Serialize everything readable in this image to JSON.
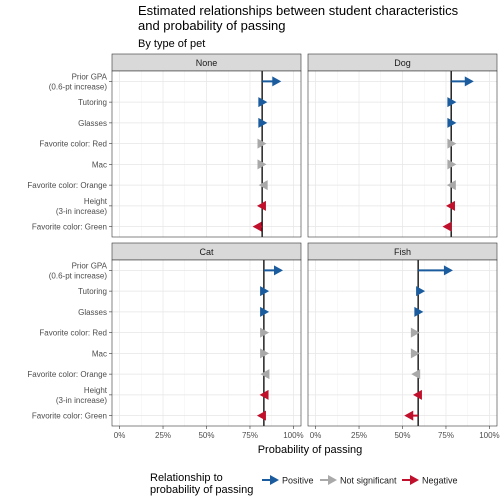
{
  "chart_data": {
    "type": "arrow-dot",
    "title_lines": [
      "Estimated relationships between student characteristics",
      "and probability of passing"
    ],
    "subtitle": "By type of pet",
    "xlabel": "Probability of passing",
    "xlim": [
      0,
      1
    ],
    "x_ticks": [
      {
        "value": 0,
        "label": "0%"
      },
      {
        "value": 0.25,
        "label": "25%"
      },
      {
        "value": 0.5,
        "label": "50%"
      },
      {
        "value": 0.75,
        "label": "75%"
      },
      {
        "value": 1,
        "label": "100%"
      }
    ],
    "grid": true,
    "categories": [
      {
        "lines": [
          "Prior GPA",
          "(0.6-pt increase)"
        ]
      },
      {
        "lines": [
          "Tutoring"
        ]
      },
      {
        "lines": [
          "Glasses"
        ]
      },
      {
        "lines": [
          "Favorite color: Red"
        ]
      },
      {
        "lines": [
          "Mac"
        ]
      },
      {
        "lines": [
          "Favorite color: Orange"
        ]
      },
      {
        "lines": [
          "Height",
          "(3-in increase)"
        ]
      },
      {
        "lines": [
          "Favorite color: Green"
        ]
      }
    ],
    "legend": {
      "title_lines": [
        "Relationship to",
        "probability of passing"
      ],
      "placement": "bottom",
      "items": [
        {
          "key": "positive",
          "label": "Positive",
          "color": "#1b5c9e"
        },
        {
          "key": "ns",
          "label": "Not significant",
          "color": "#a9a9a9"
        },
        {
          "key": "negative",
          "label": "Negative",
          "color": "#c0102b"
        }
      ]
    },
    "panels": [
      {
        "name": "None",
        "baseline": 0.82,
        "arrows": [
          {
            "end": 0.93,
            "sig": "positive"
          },
          {
            "end": 0.85,
            "sig": "positive"
          },
          {
            "end": 0.85,
            "sig": "positive"
          },
          {
            "end": 0.845,
            "sig": "ns"
          },
          {
            "end": 0.845,
            "sig": "ns"
          },
          {
            "end": 0.8,
            "sig": "ns"
          },
          {
            "end": 0.79,
            "sig": "negative"
          },
          {
            "end": 0.765,
            "sig": "negative"
          }
        ]
      },
      {
        "name": "Dog",
        "baseline": 0.78,
        "arrows": [
          {
            "end": 0.91,
            "sig": "positive"
          },
          {
            "end": 0.81,
            "sig": "positive"
          },
          {
            "end": 0.81,
            "sig": "positive"
          },
          {
            "end": 0.81,
            "sig": "ns"
          },
          {
            "end": 0.81,
            "sig": "ns"
          },
          {
            "end": 0.755,
            "sig": "ns"
          },
          {
            "end": 0.75,
            "sig": "negative"
          },
          {
            "end": 0.73,
            "sig": "negative"
          }
        ]
      },
      {
        "name": "Cat",
        "baseline": 0.83,
        "arrows": [
          {
            "end": 0.94,
            "sig": "positive"
          },
          {
            "end": 0.86,
            "sig": "positive"
          },
          {
            "end": 0.86,
            "sig": "positive"
          },
          {
            "end": 0.86,
            "sig": "ns"
          },
          {
            "end": 0.86,
            "sig": "ns"
          },
          {
            "end": 0.81,
            "sig": "ns"
          },
          {
            "end": 0.805,
            "sig": "negative"
          },
          {
            "end": 0.79,
            "sig": "negative"
          }
        ]
      },
      {
        "name": "Fish",
        "baseline": 0.59,
        "arrows": [
          {
            "end": 0.79,
            "sig": "positive"
          },
          {
            "end": 0.63,
            "sig": "positive"
          },
          {
            "end": 0.62,
            "sig": "positive"
          },
          {
            "end": 0.6,
            "sig": "ns"
          },
          {
            "end": 0.6,
            "sig": "ns"
          },
          {
            "end": 0.55,
            "sig": "ns"
          },
          {
            "end": 0.56,
            "sig": "negative"
          },
          {
            "end": 0.51,
            "sig": "negative"
          }
        ]
      }
    ]
  }
}
